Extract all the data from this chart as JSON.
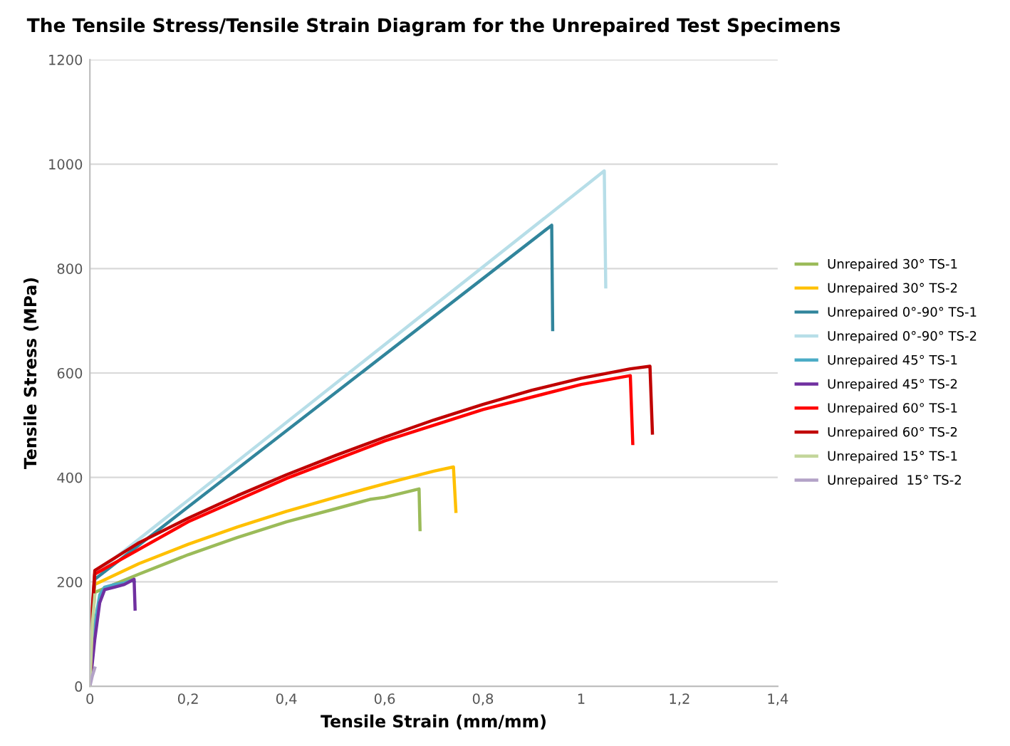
{
  "chart_data": {
    "type": "line",
    "title": "The Tensile Stress/Tensile Strain Diagram for the Unrepaired Test Specimens",
    "xlabel": "Tensile Strain (mm/mm)",
    "ylabel": "Tensile Stress (MPa)",
    "xlim": [
      0,
      1.4
    ],
    "ylim": [
      0,
      1200
    ],
    "xticks": [
      0,
      {
        "value": 0.2,
        "label": "0,2"
      },
      {
        "value": 0.4,
        "label": "0,4"
      },
      {
        "value": 0.6,
        "label": "0,6"
      },
      {
        "value": 0.8,
        "label": "0,8"
      },
      1,
      {
        "value": 1.2,
        "label": "1,2"
      },
      {
        "value": 1.4,
        "label": "1,4"
      }
    ],
    "yticks": [
      0,
      200,
      400,
      600,
      800,
      1000,
      1200
    ],
    "grid": "y",
    "legend": "right",
    "marker": "none",
    "line_style": "solid",
    "series": [
      {
        "name": "Unrepaired 30° TS-1",
        "color": "#9bbb59",
        "x": [
          0,
          0.005,
          0.01,
          0.1,
          0.2,
          0.3,
          0.4,
          0.5,
          0.57,
          0.6,
          0.67,
          0.672
        ],
        "values": [
          0,
          120,
          180,
          215,
          252,
          285,
          315,
          340,
          358,
          362,
          378,
          300
        ]
      },
      {
        "name": "Unrepaired 30° TS-2",
        "color": "#ffc000",
        "x": [
          0,
          0.005,
          0.01,
          0.1,
          0.2,
          0.3,
          0.4,
          0.5,
          0.6,
          0.7,
          0.74,
          0.745
        ],
        "values": [
          0,
          150,
          195,
          235,
          272,
          305,
          335,
          362,
          388,
          412,
          420,
          335
        ]
      },
      {
        "name": "Unrepaired 0°-90° TS-1",
        "color": "#31859c",
        "x": [
          0,
          0.005,
          0.01,
          0.94,
          0.942
        ],
        "values": [
          0,
          140,
          205,
          883,
          683
        ]
      },
      {
        "name": "Unrepaired 0°-90° TS-2",
        "color": "#b7dee8",
        "x": [
          0,
          0.005,
          0.01,
          1.047,
          1.05
        ],
        "values": [
          0,
          150,
          215,
          987,
          765
        ]
      },
      {
        "name": "Unrepaired 45° TS-1",
        "color": "#4bacc6",
        "x": [
          0,
          0.01,
          0.02,
          0.03,
          0.05,
          0.07,
          0.085,
          0.09
        ],
        "values": [
          0,
          120,
          175,
          190,
          195,
          198,
          203,
          200
        ]
      },
      {
        "name": "Unrepaired 45° TS-2",
        "color": "#7030a0",
        "x": [
          0,
          0.01,
          0.02,
          0.03,
          0.05,
          0.07,
          0.09,
          0.092
        ],
        "values": [
          0,
          90,
          160,
          185,
          190,
          195,
          205,
          148
        ]
      },
      {
        "name": "Unrepaired 60° TS-1",
        "color": "#ff0000",
        "x": [
          0,
          0.005,
          0.01,
          0.2,
          0.4,
          0.6,
          0.8,
          1.0,
          1.1,
          1.105
        ],
        "values": [
          0,
          140,
          215,
          315,
          398,
          470,
          530,
          578,
          595,
          465
        ]
      },
      {
        "name": "Unrepaired 60° TS-2",
        "color": "#c00000",
        "x": [
          0,
          0.005,
          0.01,
          0.1,
          0.2,
          0.3,
          0.4,
          0.5,
          0.6,
          0.7,
          0.8,
          0.9,
          1.0,
          1.1,
          1.14,
          1.145
        ],
        "values": [
          0,
          150,
          222,
          275,
          322,
          365,
          405,
          442,
          477,
          510,
          540,
          567,
          590,
          608,
          613,
          485
        ]
      },
      {
        "name": "Unrepaired 15° TS-1",
        "color": "#c3d69b",
        "x": [
          0,
          0.005,
          0.01
        ],
        "values": [
          0,
          120,
          175
        ]
      },
      {
        "name": "Unrepaired  15° TS-2",
        "color": "#b3a2c7",
        "x": [
          0,
          0.005,
          0.01
        ],
        "values": [
          0,
          20,
          35
        ]
      }
    ]
  }
}
